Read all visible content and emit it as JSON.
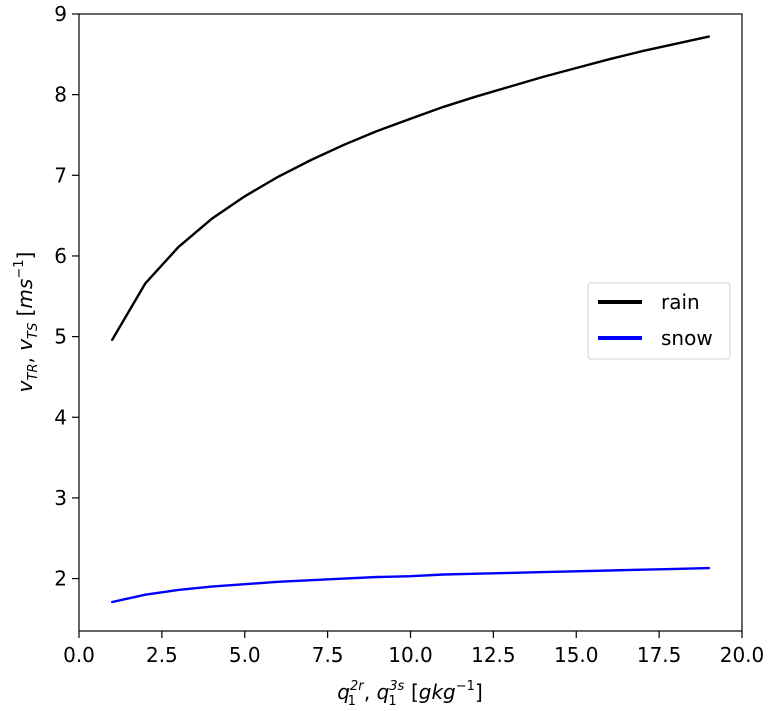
{
  "chart_data": {
    "type": "line",
    "xlim": [
      0.0,
      20.0
    ],
    "ylim": [
      1.35,
      9.0
    ],
    "x_ticks": [
      "0.0",
      "2.5",
      "5.0",
      "7.5",
      "10.0",
      "12.5",
      "15.0",
      "17.5",
      "20.0"
    ],
    "y_ticks": [
      "2",
      "3",
      "4",
      "5",
      "6",
      "7",
      "8",
      "9"
    ],
    "x_tick_values": [
      0,
      2.5,
      5,
      7.5,
      10,
      12.5,
      15,
      17.5,
      20
    ],
    "y_tick_values": [
      2,
      3,
      4,
      5,
      6,
      7,
      8,
      9
    ],
    "xlabel": {
      "q": "q",
      "sup_a": "2r",
      "sub_a": "1",
      "sep": ", ",
      "sup_b": "3s",
      "sub_b": "1",
      "unit_open": " [",
      "unit": "gkg",
      "unit_sup": "−1",
      "unit_close": "]"
    },
    "ylabel": {
      "v": "v",
      "sub_a": "TR",
      "sep": ", ",
      "sub_b": "TS",
      "unit_open": " [",
      "unit": "ms",
      "unit_sup": "−1",
      "unit_close": "]"
    },
    "legend_position": "center-right",
    "grid": false,
    "series": [
      {
        "name": "rain",
        "color": "#000000",
        "x": [
          1,
          2,
          3,
          4,
          5,
          6,
          7,
          8,
          9,
          10,
          11,
          12,
          13,
          14,
          15,
          16,
          17,
          18,
          19
        ],
        "values": [
          4.96,
          5.66,
          6.11,
          6.46,
          6.74,
          6.98,
          7.19,
          7.38,
          7.55,
          7.7,
          7.85,
          7.98,
          8.1,
          8.22,
          8.33,
          8.44,
          8.54,
          8.63,
          8.72
        ]
      },
      {
        "name": "snow",
        "color": "#0000ff",
        "x": [
          1,
          2,
          3,
          4,
          5,
          6,
          7,
          8,
          9,
          10,
          11,
          12,
          13,
          14,
          15,
          16,
          17,
          18,
          19
        ],
        "values": [
          1.71,
          1.8,
          1.86,
          1.9,
          1.93,
          1.96,
          1.98,
          2.0,
          2.02,
          2.03,
          2.05,
          2.06,
          2.07,
          2.08,
          2.09,
          2.1,
          2.11,
          2.12,
          2.13
        ]
      }
    ]
  }
}
